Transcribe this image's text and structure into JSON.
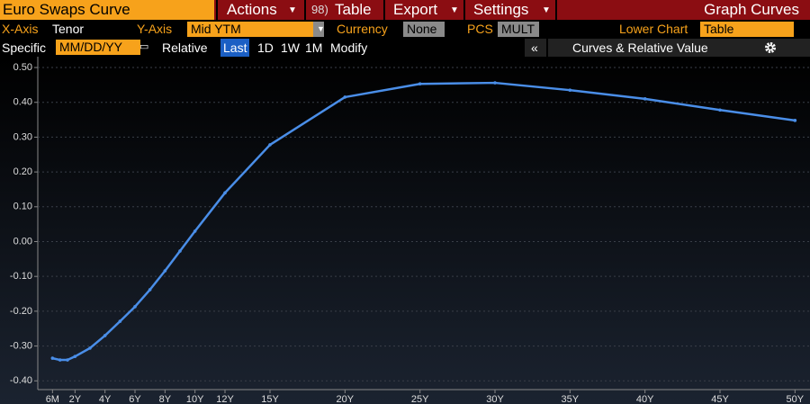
{
  "toolbar": {
    "title": "Euro Swaps Curve",
    "table_number": "98)",
    "menus": [
      "Actions",
      "Table",
      "Export",
      "Settings"
    ],
    "right_title": "Graph Curves"
  },
  "settings": {
    "x_axis_label": "X-Axis",
    "x_axis_value": "Tenor",
    "y_axis_label": "Y-Axis",
    "y_axis_value": "Mid YTM",
    "currency_label": "Currency",
    "currency_value": "None",
    "pcs_label": "PCS",
    "pcs_value": "MULT",
    "lower_chart_label": "Lower Chart",
    "lower_chart_value": "Table"
  },
  "range": {
    "specific_label": "Specific",
    "date_placeholder": "MM/DD/YY",
    "relative_label": "Relative",
    "buttons": [
      "Last",
      "1D",
      "1W",
      "1M"
    ],
    "active_button": 0,
    "modify": "Modify",
    "collapse": "«",
    "panel_title": "Curves & Relative Value"
  },
  "chart_data": {
    "type": "line",
    "color": "#4a8ee8",
    "x": [
      0.5,
      1,
      1.5,
      2,
      3,
      4,
      5,
      6,
      7,
      8,
      9,
      10,
      12,
      15,
      20,
      25,
      30,
      35,
      40,
      45,
      50
    ],
    "values": [
      -0.335,
      -0.34,
      -0.34,
      -0.33,
      -0.306,
      -0.27,
      -0.229,
      -0.187,
      -0.138,
      -0.084,
      -0.027,
      0.03,
      0.14,
      0.278,
      0.415,
      0.453,
      0.456,
      0.435,
      0.41,
      0.378,
      0.348
    ],
    "xlim": [
      0,
      51
    ],
    "xticks": [
      {
        "value": 0.5,
        "label": "6M"
      },
      {
        "value": 2,
        "label": "2Y"
      },
      {
        "value": 4,
        "label": "4Y"
      },
      {
        "value": 6,
        "label": "6Y"
      },
      {
        "value": 8,
        "label": "8Y"
      },
      {
        "value": 10,
        "label": "10Y"
      },
      {
        "value": 12,
        "label": "12Y"
      },
      {
        "value": 15,
        "label": "15Y"
      },
      {
        "value": 20,
        "label": "20Y"
      },
      {
        "value": 25,
        "label": "25Y"
      },
      {
        "value": 30,
        "label": "30Y"
      },
      {
        "value": 35,
        "label": "35Y"
      },
      {
        "value": 40,
        "label": "40Y"
      },
      {
        "value": 45,
        "label": "45Y"
      },
      {
        "value": 50,
        "label": "50Y"
      }
    ],
    "ylim": [
      -0.42,
      0.52
    ],
    "yticks": [
      {
        "value": -0.4,
        "label": "-0.40"
      },
      {
        "value": -0.3,
        "label": "-0.30"
      },
      {
        "value": -0.2,
        "label": "-0.20"
      },
      {
        "value": -0.1,
        "label": "-0.10"
      },
      {
        "value": 0,
        "label": "0.00"
      },
      {
        "value": 0.1,
        "label": "0.10"
      },
      {
        "value": 0.2,
        "label": "0.20"
      },
      {
        "value": 0.3,
        "label": "0.30"
      },
      {
        "value": 0.4,
        "label": "0.40"
      },
      {
        "value": 0.5,
        "label": "0.50"
      }
    ],
    "grid": true
  }
}
